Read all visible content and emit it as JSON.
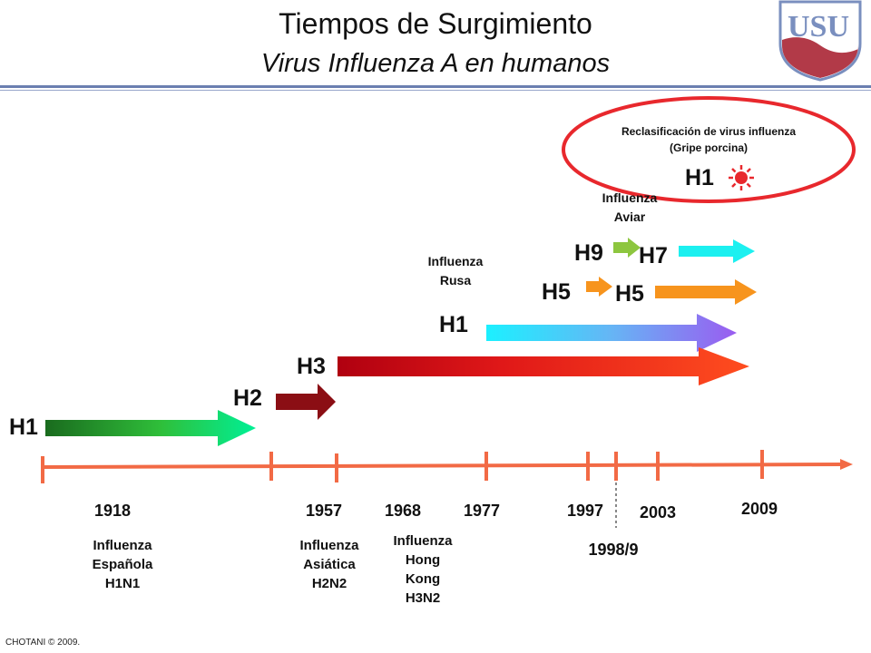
{
  "header": {
    "title": "Tiempos de Surgimiento",
    "subtitle": "Virus Influenza A en humanos"
  },
  "logo": {
    "letters": "USU",
    "name": "usu-logo"
  },
  "subtypes": {
    "h1_first": "H1",
    "h2": "H2",
    "h3": "H3",
    "h1_return": "H1",
    "h5_start": "H5",
    "h5_end": "H5",
    "h9": "H9",
    "h7": "H7",
    "h1_swine": "H1"
  },
  "years": {
    "y1918": "1918",
    "y1957": "1957",
    "y1968": "1968",
    "y1977": "1977",
    "y1997": "1997",
    "y1998": "1998/9",
    "y2003": "2003",
    "y2009": "2009"
  },
  "pandemics": {
    "spanish": [
      "Influenza",
      "Española",
      "H1N1"
    ],
    "asian": [
      "Influenza",
      "Asiática",
      "H2N2"
    ],
    "hongkong": [
      "Influenza",
      "Hong",
      "Kong",
      "H3N2"
    ],
    "russian": [
      "Influenza",
      "Rusa"
    ],
    "avian": [
      "Influenza",
      "Aviar"
    ]
  },
  "reclass": {
    "line1": "Reclasificación de virus influenza",
    "line2": "(Gripe porcina)"
  },
  "footer": "CHOTANI © 2009.",
  "colors": {
    "timeline": "#f26a45",
    "ellipse": "#e8282d",
    "rule": "#6b7fb0"
  }
}
